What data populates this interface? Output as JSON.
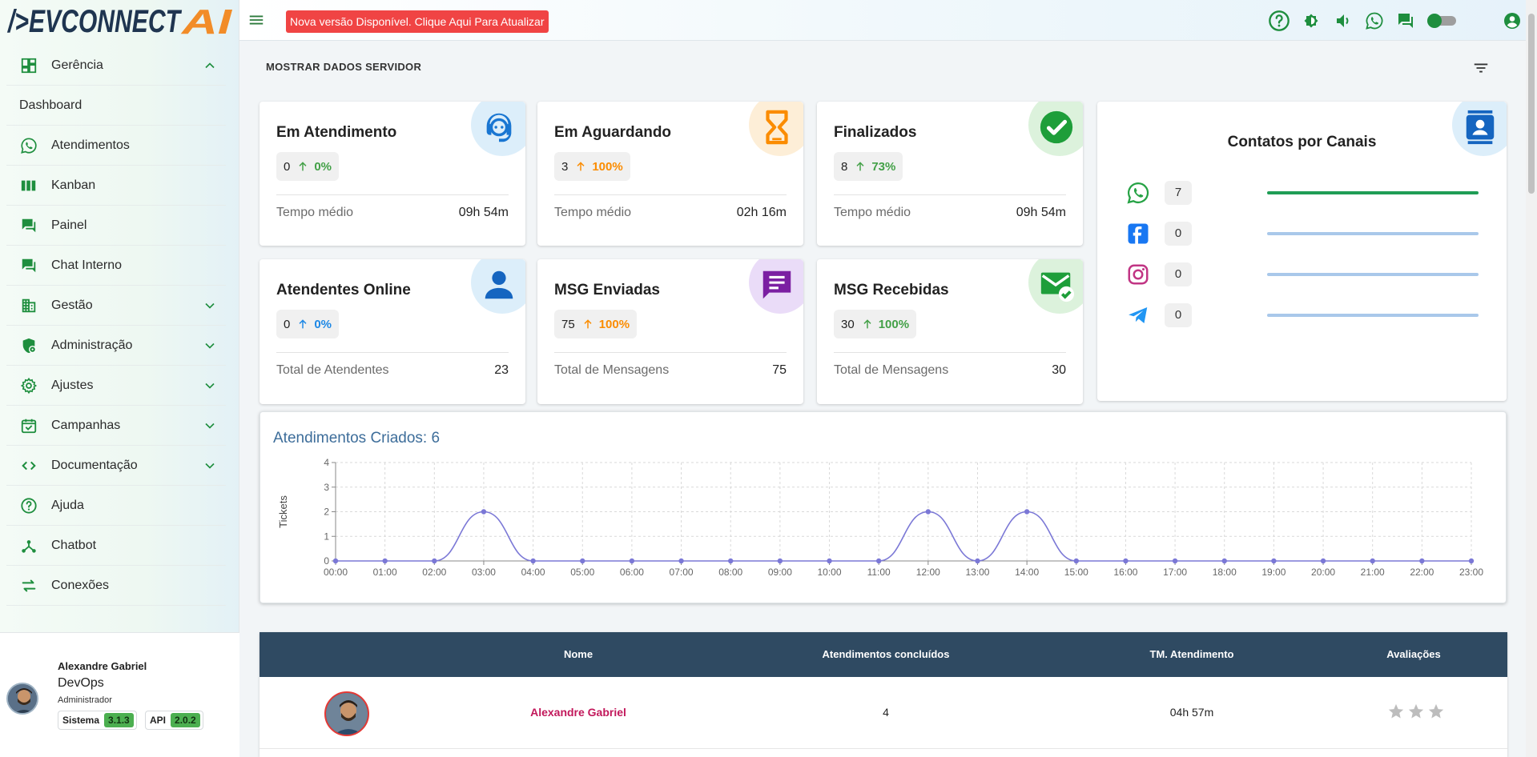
{
  "brand": {
    "logo_text": "/>EVCONNECTAI"
  },
  "topbar": {
    "update_banner": "Nova versão Disponível. Clique Aqui Para Atualizar",
    "icons": [
      "help-icon",
      "brightness-icon",
      "volume-icon",
      "whatsapp-icon",
      "chat-icon",
      "theme-toggle",
      "account-icon"
    ]
  },
  "sidebar": {
    "items": [
      {
        "label": "Gerência",
        "icon": "dashboard-grid-icon",
        "chevron": "up"
      },
      {
        "label": "Dashboard",
        "icon": "",
        "chevron": ""
      },
      {
        "label": "Atendimentos",
        "icon": "whatsapp-icon",
        "chevron": ""
      },
      {
        "label": "Kanban",
        "icon": "kanban-icon",
        "chevron": ""
      },
      {
        "label": "Painel",
        "icon": "forum-icon",
        "chevron": ""
      },
      {
        "label": "Chat Interno",
        "icon": "forum-icon",
        "chevron": ""
      },
      {
        "label": "Gestão",
        "icon": "building-icon",
        "chevron": "down"
      },
      {
        "label": "Administração",
        "icon": "admin-shield-icon",
        "chevron": "down"
      },
      {
        "label": "Ajustes",
        "icon": "gear-icon",
        "chevron": "down"
      },
      {
        "label": "Campanhas",
        "icon": "calendar-check-icon",
        "chevron": "down"
      },
      {
        "label": "Documentação",
        "icon": "code-icon",
        "chevron": "down"
      },
      {
        "label": "Ajuda",
        "icon": "help-icon",
        "chevron": ""
      },
      {
        "label": "Chatbot",
        "icon": "hub-icon",
        "chevron": ""
      },
      {
        "label": "Conexões",
        "icon": "swap-icon",
        "chevron": ""
      }
    ],
    "user": {
      "name": "Alexandre Gabriel",
      "role": "DevOps",
      "profile": "Administrador",
      "sistema_label": "Sistema",
      "sistema_version": "3.1.3",
      "api_label": "API",
      "api_version": "2.0.2"
    }
  },
  "main": {
    "server_button": "MOSTRAR DADOS SERVIDOR",
    "cards": [
      {
        "title": "Em Atendimento",
        "count": "0",
        "percent": "0%",
        "trend_color": "#43a047",
        "footer_label": "Tempo médio",
        "footer_value": "09h 54m",
        "icon": "support-agent-icon",
        "icon_bg": "#dceefa",
        "icon_color": "#1976d2"
      },
      {
        "title": "Em Aguardando",
        "count": "3",
        "percent": "100%",
        "trend_color": "#fb8c00",
        "footer_label": "Tempo médio",
        "footer_value": "02h 16m",
        "icon": "hourglass-icon",
        "icon_bg": "#fdeed7",
        "icon_color": "#fb8c00"
      },
      {
        "title": "Finalizados",
        "count": "8",
        "percent": "73%",
        "trend_color": "#43a047",
        "footer_label": "Tempo médio",
        "footer_value": "09h 54m",
        "icon": "check-circle-icon",
        "icon_bg": "#dcf2dc",
        "icon_color": "#1e9e3a"
      },
      {
        "title": "Atendentes Online",
        "count": "0",
        "percent": "0%",
        "trend_color": "#1e88e5",
        "footer_label": "Total de Atendentes",
        "footer_value": "23",
        "icon": "person-icon",
        "icon_bg": "#dceefa",
        "icon_color": "#1565c0"
      },
      {
        "title": "MSG Enviadas",
        "count": "75",
        "percent": "100%",
        "trend_color": "#fb8c00",
        "footer_label": "Total de Mensagens",
        "footer_value": "75",
        "icon": "message-icon",
        "icon_bg": "#eadcf8",
        "icon_color": "#7b1fa2"
      },
      {
        "title": "MSG Recebidas",
        "count": "30",
        "percent": "100%",
        "trend_color": "#43a047",
        "footer_label": "Total de Mensagens",
        "footer_value": "30",
        "icon": "mail-check-icon",
        "icon_bg": "#dcf2dc",
        "icon_color": "#1e9e3a"
      }
    ],
    "canais": {
      "title": "Contatos por Canais",
      "rows": [
        {
          "name": "WhatsApp",
          "icon": "whatsapp-icon",
          "count": "7",
          "color": "#25a244",
          "bar_color": "#1f9d55"
        },
        {
          "name": "Facebook",
          "icon": "facebook-icon",
          "count": "0",
          "color": "#1877f2",
          "bar_color": "#a9c8ea"
        },
        {
          "name": "Instagram",
          "icon": "instagram-icon",
          "count": "0",
          "color": "#c13584",
          "bar_color": "#a9c8ea"
        },
        {
          "name": "Telegram",
          "icon": "telegram-icon",
          "count": "0",
          "color": "#2196f3",
          "bar_color": "#a9c8ea"
        }
      ]
    },
    "table": {
      "headers": [
        "Nome",
        "Atendimentos concluídos",
        "TM. Atendimento",
        "Avaliações"
      ],
      "rows": [
        {
          "name": "Alexandre Gabriel",
          "concluidos": "4",
          "tm": "04h 57m",
          "stars": 0
        }
      ]
    }
  },
  "chart_data": {
    "type": "line",
    "title": "Atendimentos Criados: 6",
    "ylabel": "Tickets",
    "xlabel": "",
    "categories": [
      "00:00",
      "01:00",
      "02:00",
      "03:00",
      "04:00",
      "05:00",
      "06:00",
      "07:00",
      "08:00",
      "09:00",
      "10:00",
      "11:00",
      "12:00",
      "13:00",
      "14:00",
      "15:00",
      "16:00",
      "17:00",
      "18:00",
      "19:00",
      "20:00",
      "21:00",
      "22:00",
      "23:00"
    ],
    "series": [
      {
        "values": [
          0,
          0,
          0,
          2,
          0,
          0,
          0,
          0,
          0,
          0,
          0,
          0,
          2,
          0,
          2,
          0,
          0,
          0,
          0,
          0,
          0,
          0,
          0,
          0
        ]
      }
    ],
    "ylim": [
      0,
      4
    ],
    "yticks": [
      0,
      1,
      2,
      3,
      4
    ],
    "grid": true,
    "line_color": "#7b78d6"
  }
}
